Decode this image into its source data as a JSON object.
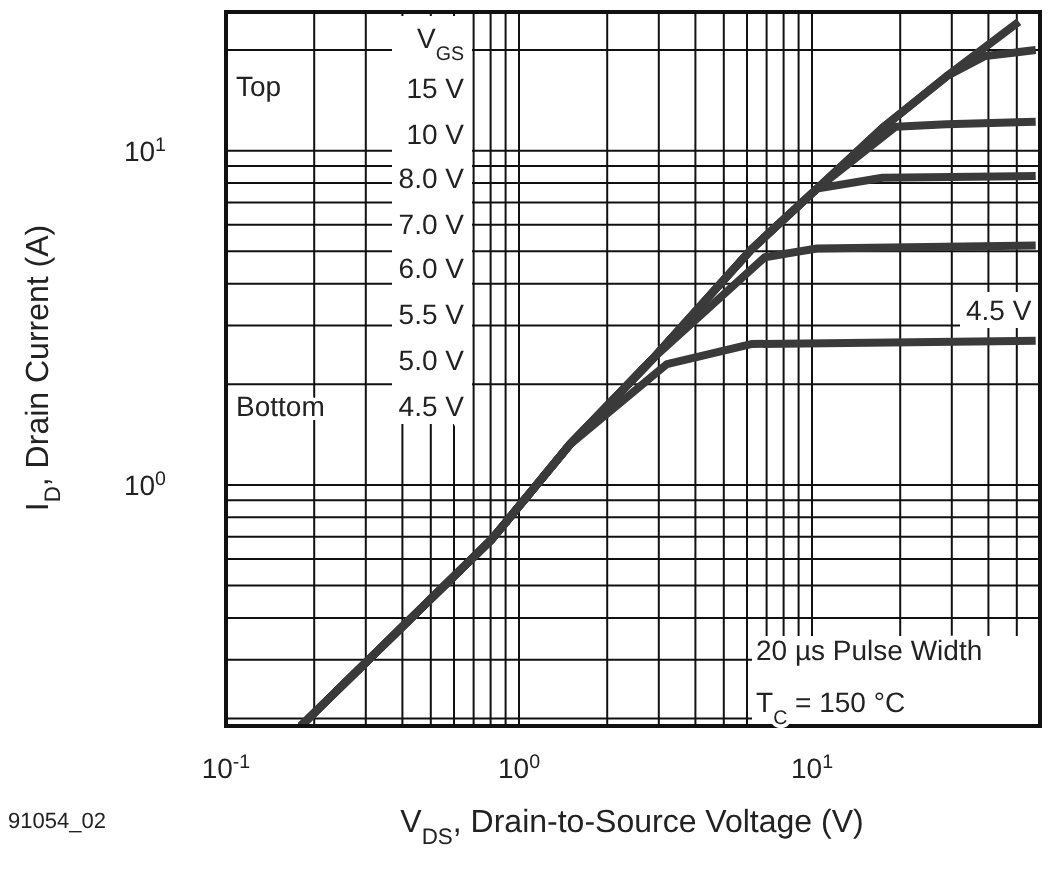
{
  "chart_data": {
    "type": "line",
    "log": "xy",
    "grid": true,
    "marker": "none",
    "line_style": "solid",
    "xlabel": "V$_{DS}$, Drain-to-Source Voltage (V)",
    "ylabel": "I$_{D}$, Drain Current (A)",
    "xlim": [
      0.1,
      60
    ],
    "ylim": [
      0.19,
      26
    ],
    "xticks": [
      {
        "value": 0.1,
        "label": "10$^{-1}$"
      },
      {
        "value": 0.2,
        "label": null
      },
      {
        "value": 0.3,
        "label": null
      },
      {
        "value": 0.4,
        "label": null
      },
      {
        "value": 0.5,
        "label": null
      },
      {
        "value": 0.6,
        "label": null
      },
      {
        "value": 0.7,
        "label": null
      },
      {
        "value": 0.8,
        "label": null
      },
      {
        "value": 0.9,
        "label": null
      },
      {
        "value": 1,
        "label": "10$^{0}$"
      },
      {
        "value": 2,
        "label": null
      },
      {
        "value": 3,
        "label": null
      },
      {
        "value": 4,
        "label": null
      },
      {
        "value": 5,
        "label": null
      },
      {
        "value": 6,
        "label": null
      },
      {
        "value": 7,
        "label": null
      },
      {
        "value": 8,
        "label": null
      },
      {
        "value": 9,
        "label": null
      },
      {
        "value": 10,
        "label": "10$^{1}$"
      },
      {
        "value": 20,
        "label": null
      },
      {
        "value": 30,
        "label": null
      },
      {
        "value": 40,
        "label": null
      },
      {
        "value": 50,
        "label": null
      }
    ],
    "yticks": [
      {
        "value": 0.2,
        "label": null
      },
      {
        "value": 0.3,
        "label": null
      },
      {
        "value": 0.4,
        "label": null
      },
      {
        "value": 0.5,
        "label": null
      },
      {
        "value": 0.6,
        "label": null
      },
      {
        "value": 0.7,
        "label": null
      },
      {
        "value": 0.8,
        "label": null
      },
      {
        "value": 0.9,
        "label": null
      },
      {
        "value": 1,
        "label": "10$^{0}$"
      },
      {
        "value": 2,
        "label": null
      },
      {
        "value": 3,
        "label": null
      },
      {
        "value": 4,
        "label": null
      },
      {
        "value": 5,
        "label": null
      },
      {
        "value": 6,
        "label": null
      },
      {
        "value": 7,
        "label": null
      },
      {
        "value": 8,
        "label": null
      },
      {
        "value": 9,
        "label": null
      },
      {
        "value": 10,
        "label": "10$^{1}$"
      },
      {
        "value": 20,
        "label": null
      }
    ],
    "series": [
      {
        "color": "#3a3a3a",
        "x": [
          0.18,
          0.81,
          1.49,
          2.88,
          6.2,
          10.4,
          17.4,
          28.8,
          50.8
        ],
        "values": [
          0.19,
          0.69,
          1.32,
          2.4,
          5.06,
          7.7,
          11.7,
          16.7,
          24.3
        ]
      },
      {
        "color": "#3a3a3a",
        "x": [
          0.18,
          0.81,
          1.49,
          2.88,
          6.2,
          10.4,
          17.4,
          28.8,
          39,
          58
        ],
        "values": [
          0.19,
          0.69,
          1.32,
          2.4,
          5.06,
          7.7,
          11.7,
          16.7,
          19.2,
          20
        ]
      },
      {
        "color": "#3a3a3a",
        "x": [
          0.18,
          0.81,
          1.49,
          2.88,
          6.2,
          10.4,
          19.3,
          28.8,
          58
        ],
        "values": [
          0.19,
          0.69,
          1.32,
          2.4,
          5.06,
          7.7,
          11.8,
          12,
          12.2
        ]
      },
      {
        "color": "#3a3a3a",
        "x": [
          0.18,
          0.81,
          1.49,
          2.88,
          6.2,
          10.4,
          17.4,
          58
        ],
        "values": [
          0.19,
          0.69,
          1.32,
          2.4,
          5.06,
          7.7,
          8.3,
          8.4
        ]
      },
      {
        "color": "#3a3a3a",
        "x": [
          0.18,
          0.81,
          1.49,
          2.88,
          6.9,
          10.4,
          58
        ],
        "values": [
          0.19,
          0.69,
          1.32,
          2.4,
          4.8,
          5.1,
          5.2
        ]
      },
      {
        "color": "#3a3a3a",
        "x": [
          0.18,
          0.81,
          1.49,
          3.2,
          6.2,
          58
        ],
        "values": [
          0.19,
          0.69,
          1.32,
          2.3,
          2.64,
          2.7
        ]
      }
    ],
    "annotations": [
      "V$_{GS}$",
      "Top",
      "15 V",
      "10 V",
      "8.0 V",
      "7.0 V",
      "6.0 V",
      "5.5 V",
      "5.0 V",
      "Bottom",
      "4.5 V",
      "4.5 V",
      "20 µs Pulse Width",
      "T$_{C}$ = 150 °C",
      "91054_02"
    ]
  }
}
